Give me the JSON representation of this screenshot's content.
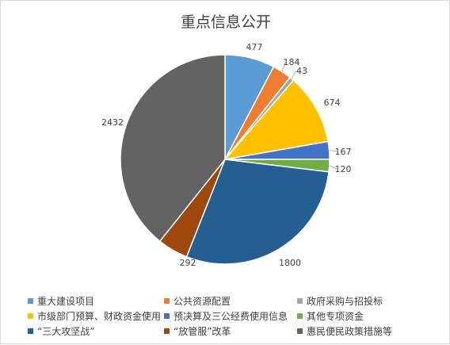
{
  "chart_data": {
    "type": "pie",
    "title": "重点信息公开",
    "legend_position": "bottom",
    "categories": [
      "重大建设项目",
      "公共资源配置",
      "政府采购与招投标",
      "市级部门预算、财政资金使用",
      "预决算及三公经费使用信息",
      "其他专项资金",
      "“三大攻坚战”",
      "“放管服”改革",
      "惠民便民政策措施等"
    ],
    "values": [
      477,
      184,
      43,
      674,
      167,
      120,
      1800,
      292,
      2432
    ],
    "value_labels": [
      "477",
      "184",
      "43",
      "674",
      "167",
      "120",
      "1800",
      "292",
      "2432"
    ],
    "colors": [
      "#5b9bd5",
      "#ed7d31",
      "#a5a5a5",
      "#ffc000",
      "#4472c4",
      "#70ad47",
      "#255e91",
      "#9e480e",
      "#636363"
    ]
  }
}
